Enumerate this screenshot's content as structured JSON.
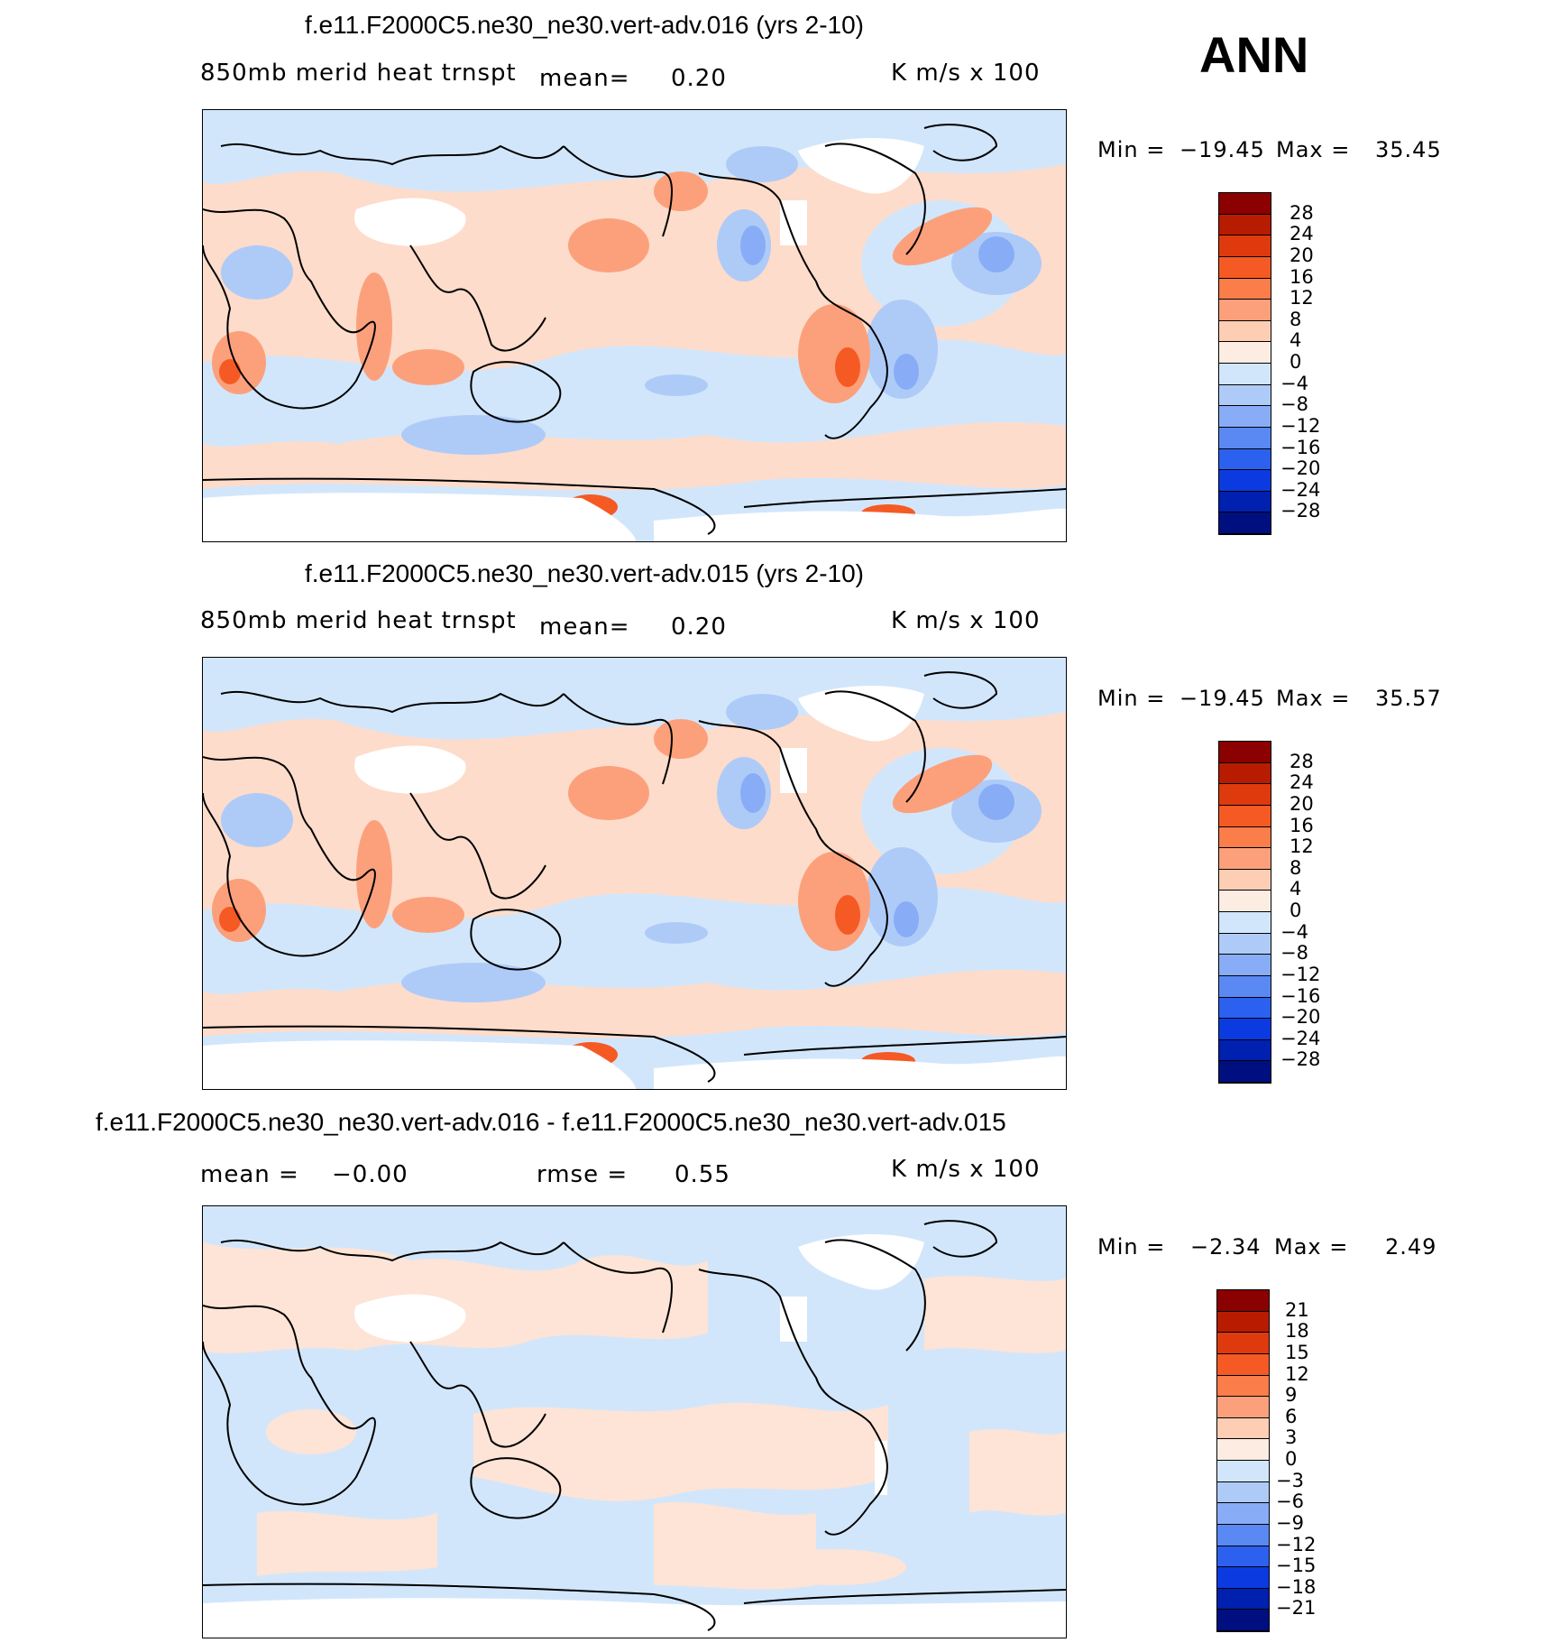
{
  "season": "ANN",
  "panels": [
    {
      "title": "f.e11.F2000C5.ne30_ne30.vert-adv.016 (yrs 2-10)",
      "variable": "850mb  merid  heat  trnspt",
      "mean_label": "mean=",
      "mean_value": "0.20",
      "units": "K  m/s  x  100",
      "min_label": "Min  =",
      "min_value": "−19.45",
      "max_label": "Max  =",
      "max_value": "35.45",
      "levels": [
        "28",
        "24",
        "20",
        "16",
        "12",
        "8",
        "4",
        "0",
        "−4",
        "−8",
        "−12",
        "−16",
        "−20",
        "−24",
        "−28"
      ]
    },
    {
      "title": "f.e11.F2000C5.ne30_ne30.vert-adv.015 (yrs 2-10)",
      "variable": "850mb  merid  heat  trnspt",
      "mean_label": "mean=",
      "mean_value": "0.20",
      "units": "K  m/s  x  100",
      "min_label": "Min  =",
      "min_value": "−19.45",
      "max_label": "Max  =",
      "max_value": "35.57",
      "levels": [
        "28",
        "24",
        "20",
        "16",
        "12",
        "8",
        "4",
        "0",
        "−4",
        "−8",
        "−12",
        "−16",
        "−20",
        "−24",
        "−28"
      ]
    },
    {
      "title": "f.e11.F2000C5.ne30_ne30.vert-adv.016 - f.e11.F2000C5.ne30_ne30.vert-adv.015",
      "mean_label": "mean  =",
      "mean_value": "−0.00",
      "rmse_label": "rmse  =",
      "rmse_value": "0.55",
      "units": "K  m/s  x  100",
      "min_label": "Min  =",
      "min_value": "−2.34",
      "max_label": "Max  =",
      "max_value": "2.49",
      "levels": [
        "21",
        "18",
        "15",
        "12",
        "9",
        "6",
        "3",
        "0",
        "−3",
        "−6",
        "−9",
        "−12",
        "−15",
        "−18",
        "−21"
      ]
    }
  ],
  "colorbar_colors": [
    "#8b0000",
    "#b81c00",
    "#de3a0e",
    "#f55a24",
    "#fb7d4a",
    "#fca07c",
    "#fdcdb4",
    "#fdece2",
    "#d2e6fb",
    "#aecbf8",
    "#88adf6",
    "#5a89f4",
    "#2c61f0",
    "#0b3be0",
    "#0020b0",
    "#000f80"
  ],
  "colors": {
    "land_line": "#000000",
    "warm_light": "#fddccb",
    "cool_light": "#d2e6fb"
  }
}
